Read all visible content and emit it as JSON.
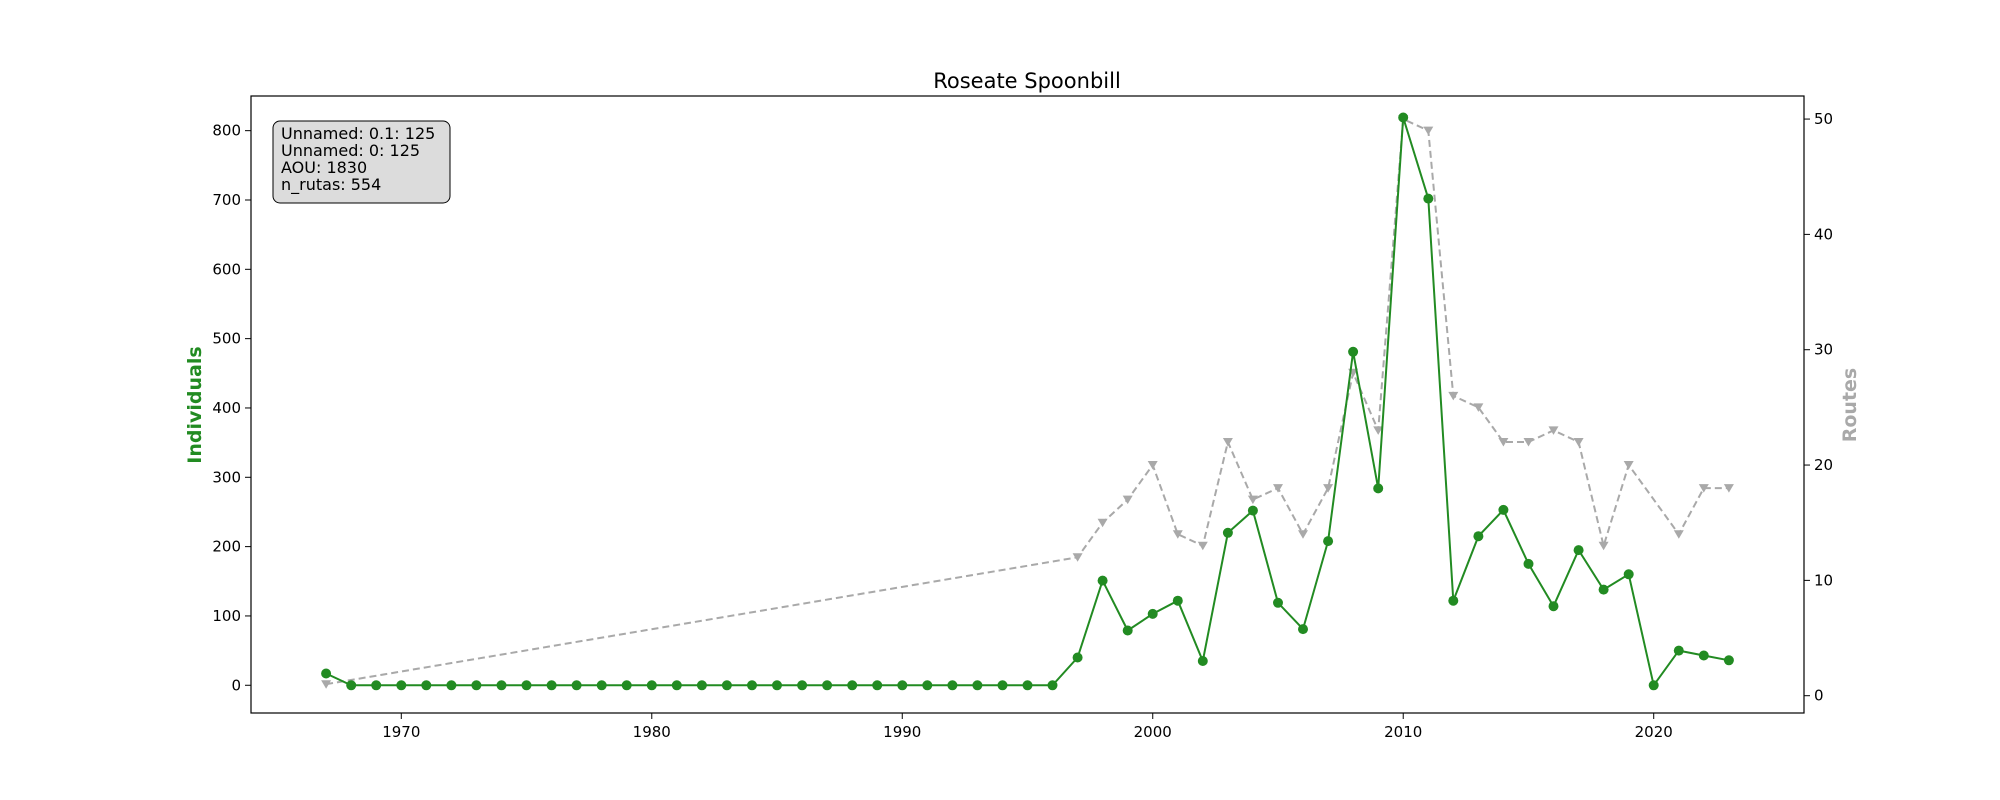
{
  "chart_data": {
    "type": "line",
    "title": "Roseate Spoonbill",
    "xlabel": "",
    "ylabel": "Individuals",
    "y2label": "Routes",
    "xlim": [
      1964,
      2026
    ],
    "ylim": [
      -40,
      850
    ],
    "y2lim": [
      -1.5,
      52
    ],
    "xticks": [
      1970,
      1980,
      1990,
      2000,
      2010,
      2020
    ],
    "yticks": [
      0,
      100,
      200,
      300,
      400,
      500,
      600,
      700,
      800
    ],
    "y2ticks": [
      0,
      10,
      20,
      30,
      40,
      50
    ],
    "grid": false,
    "colors": {
      "individuals": "#228b22",
      "routes": "#a9a9a9"
    },
    "series": [
      {
        "axis": "left",
        "style": "solid-circle",
        "x": [
          1967,
          1968,
          1969,
          1970,
          1971,
          1972,
          1973,
          1974,
          1975,
          1976,
          1977,
          1978,
          1979,
          1980,
          1981,
          1982,
          1983,
          1984,
          1985,
          1986,
          1987,
          1988,
          1989,
          1990,
          1991,
          1992,
          1993,
          1994,
          1995,
          1996,
          1997,
          1998,
          1999,
          2000,
          2001,
          2002,
          2003,
          2004,
          2005,
          2006,
          2007,
          2008,
          2009,
          2010,
          2011,
          2012,
          2013,
          2014,
          2015,
          2016,
          2017,
          2018,
          2019,
          2020,
          2021,
          2022,
          2023
        ],
        "values": [
          17,
          0,
          0,
          0,
          0,
          0,
          0,
          0,
          0,
          0,
          0,
          0,
          0,
          0,
          0,
          0,
          0,
          0,
          0,
          0,
          0,
          0,
          0,
          0,
          0,
          0,
          0,
          0,
          0,
          0,
          40,
          151,
          79,
          103,
          122,
          35,
          220,
          252,
          119,
          81,
          208,
          481,
          284,
          819,
          702,
          122,
          215,
          253,
          175,
          114,
          195,
          138,
          160,
          0,
          50,
          43,
          36
        ]
      },
      {
        "axis": "right",
        "style": "dashed-triangle",
        "x": [
          1967,
          1997,
          1998,
          1999,
          2000,
          2001,
          2002,
          2003,
          2004,
          2005,
          2006,
          2007,
          2008,
          2009,
          2010,
          2011,
          2012,
          2013,
          2014,
          2015,
          2016,
          2017,
          2018,
          2019,
          2021,
          2022,
          2023
        ],
        "values": [
          1,
          12,
          15,
          17,
          20,
          14,
          13,
          22,
          17,
          18,
          14,
          18,
          28,
          23,
          50,
          49,
          26,
          25,
          22,
          22,
          23,
          22,
          13,
          20,
          14,
          18,
          18
        ]
      }
    ]
  },
  "info_box": {
    "lines": [
      "Unnamed: 0.1: 125",
      "Unnamed: 0: 125",
      "AOU: 1830",
      "n_rutas: 554"
    ]
  }
}
